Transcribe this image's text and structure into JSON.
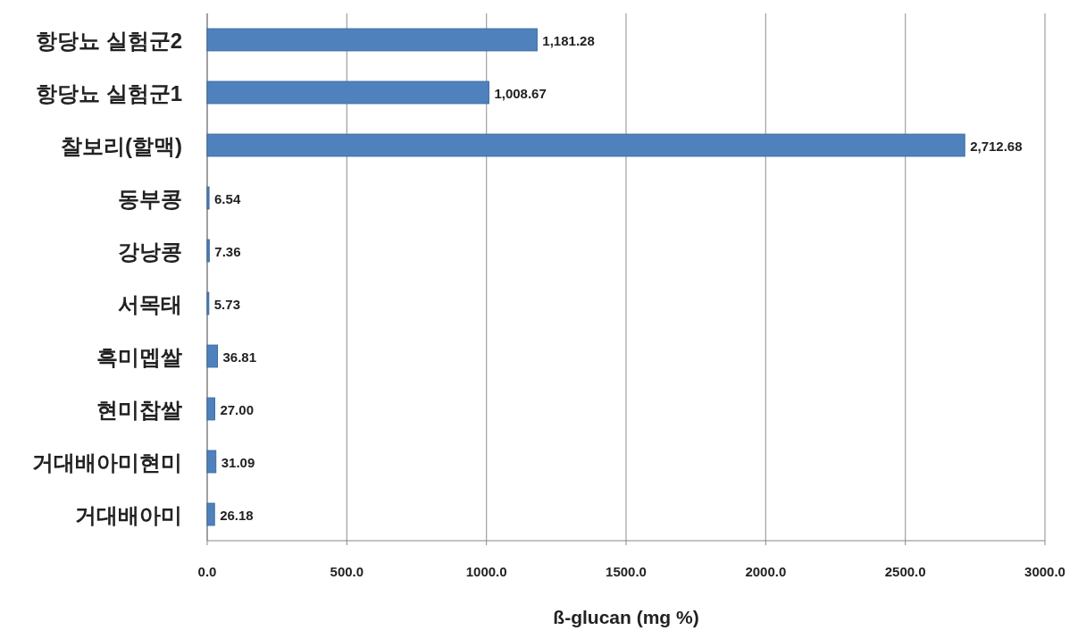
{
  "chart_data": {
    "type": "bar",
    "orientation": "horizontal",
    "xlabel": "ß-glucan (mg %)",
    "categories": [
      "항당뇨 실험군2",
      "항당뇨 실험군1",
      "찰보리(할맥)",
      "동부콩",
      "강낭콩",
      "서목태",
      "흑미멥쌀",
      "현미찹쌀",
      "거대배아미현미",
      "거대배아미"
    ],
    "values": [
      1181.28,
      1008.67,
      2712.68,
      6.54,
      7.36,
      5.73,
      36.81,
      27.0,
      31.09,
      26.18
    ],
    "value_labels": [
      "1,181.28",
      "1,008.67",
      "2,712.68",
      "6.54",
      "7.36",
      "5.73",
      "36.81",
      "27.00",
      "31.09",
      "26.18"
    ],
    "color": "#4f81bd",
    "xlim": [
      0,
      3000
    ],
    "xticks": [
      {
        "value": 0,
        "label": "0.0"
      },
      {
        "value": 500,
        "label": "500.0"
      },
      {
        "value": 1000,
        "label": "1000.0"
      },
      {
        "value": 1500,
        "label": "1500.0"
      },
      {
        "value": 2000,
        "label": "2000.0"
      },
      {
        "value": 2500,
        "label": "2500.0"
      },
      {
        "value": 3000,
        "label": "3000.0"
      }
    ],
    "grid": "x"
  }
}
